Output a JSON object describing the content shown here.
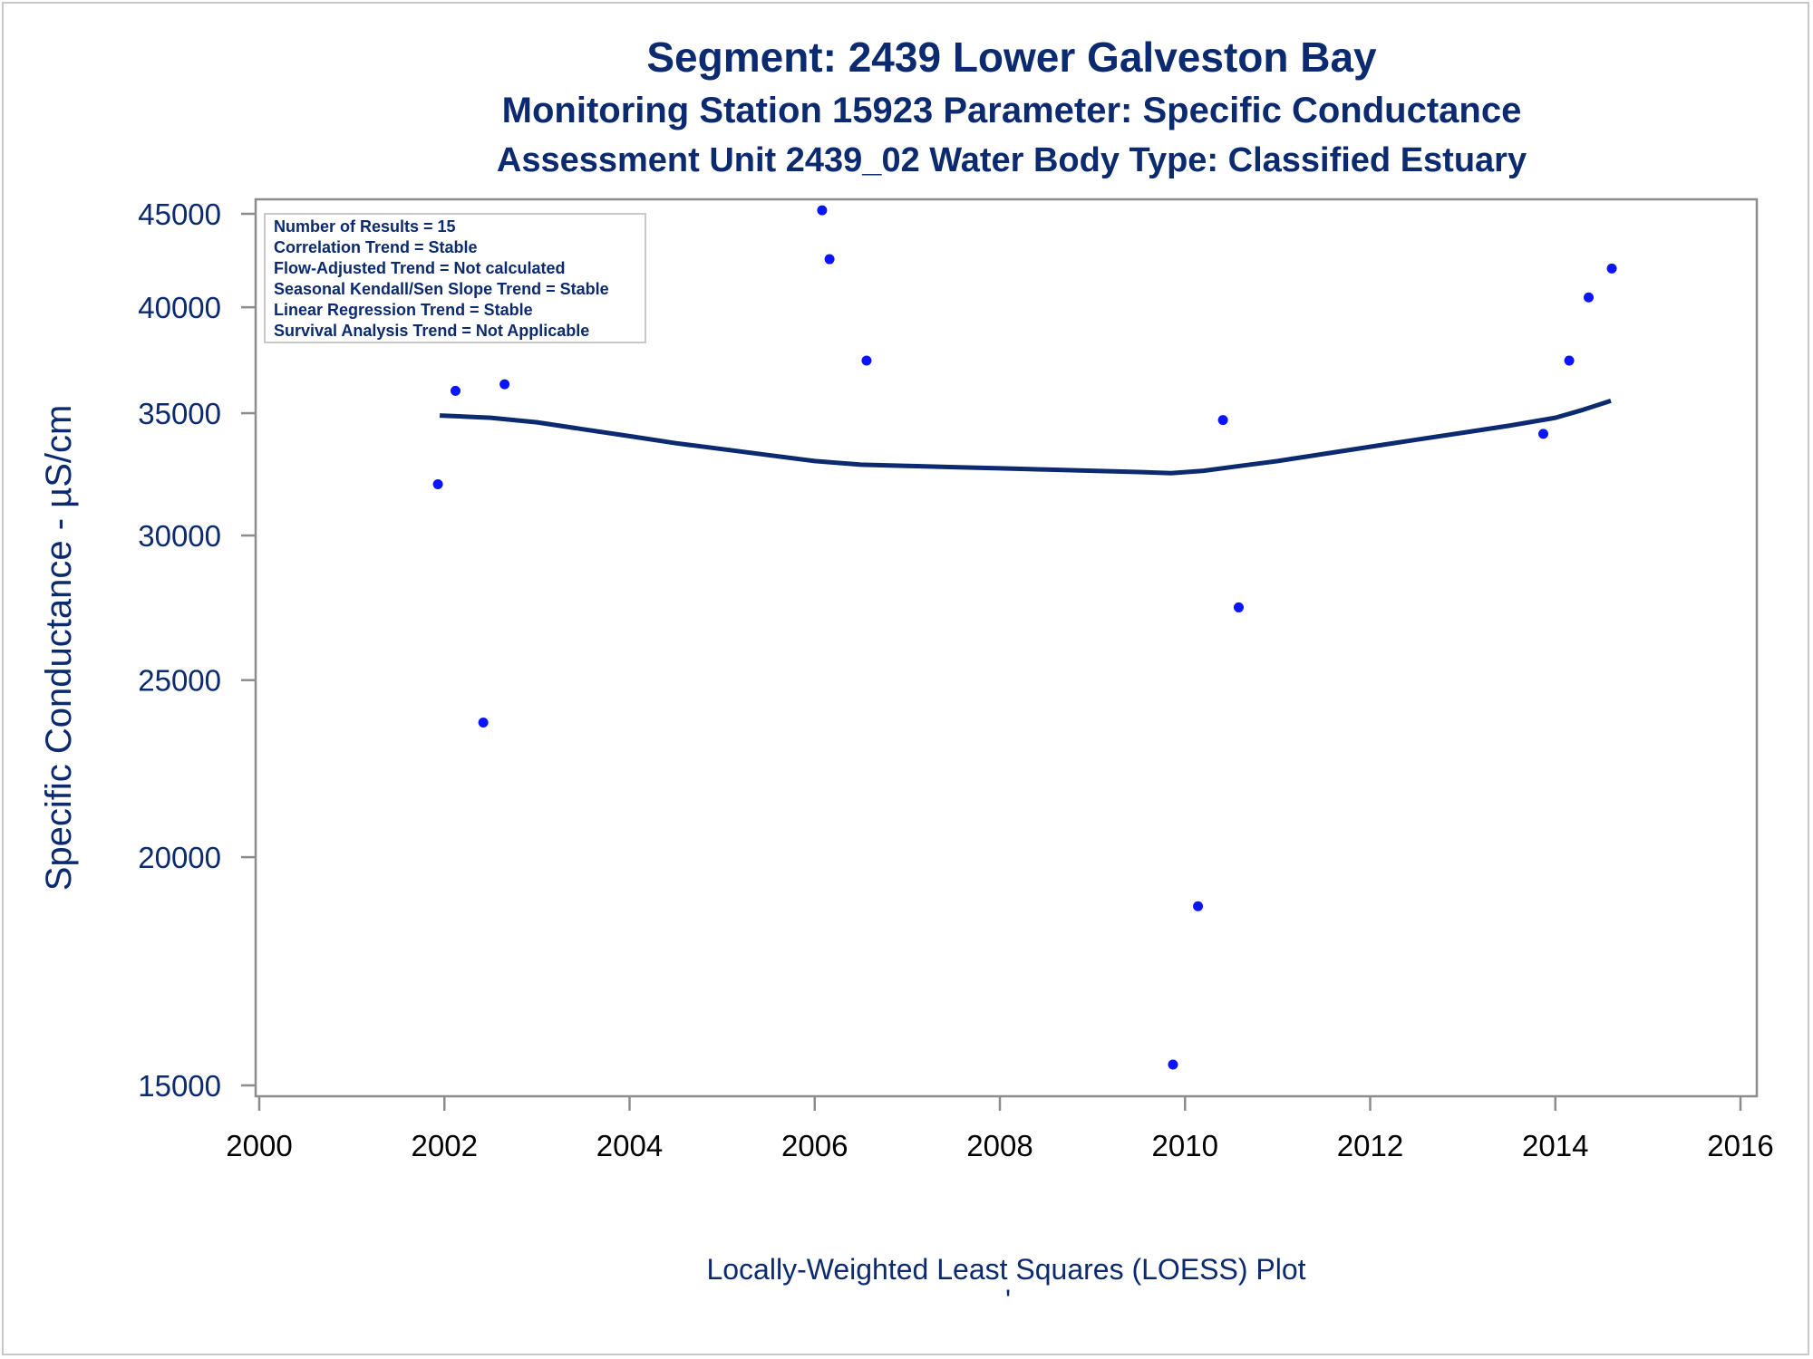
{
  "colors": {
    "title": "#0b2a6f",
    "points": "#0a14ff",
    "loess": "#0b2a6f",
    "axis": "#8c8c8c"
  },
  "chart_data": {
    "type": "scatter",
    "title": "Segment: 2439  Lower Galveston Bay",
    "subtitle": "Monitoring Station 15923 Parameter: Specific Conductance",
    "subtitle2": "Assessment Unit 2439_02   Water Body Type: Classified Estuary",
    "ylabel": "Specific Conductance -  µS/cm",
    "xlabel": "",
    "footnote": "Locally-Weighted Least Squares (LOESS) Plot",
    "footnote_mark": "'",
    "y_scale": "log",
    "ylim": [
      14800,
      45500
    ],
    "xlim": [
      2000,
      2016
    ],
    "y_ticks": [
      15000,
      20000,
      25000,
      30000,
      35000,
      40000,
      45000
    ],
    "x_ticks": [
      2000,
      2002,
      2004,
      2006,
      2008,
      2010,
      2012,
      2014,
      2016
    ],
    "grid": false,
    "stats_box": [
      "Number of Results = 15",
      "Correlation Trend = Stable",
      "Flow-Adjusted Trend = Not calculated",
      "Seasonal Kendall/Sen Slope Trend = Stable",
      "Linear Regression Trend = Stable",
      "Survival Analysis Trend = Not Applicable"
    ],
    "stats_box_placement": "top-left",
    "series": [
      {
        "type": "scatter",
        "points": [
          {
            "x": 2001.93,
            "y": 32000
          },
          {
            "x": 2002.12,
            "y": 36000
          },
          {
            "x": 2002.42,
            "y": 23700
          },
          {
            "x": 2002.65,
            "y": 36300
          },
          {
            "x": 2006.08,
            "y": 45200
          },
          {
            "x": 2006.16,
            "y": 42500
          },
          {
            "x": 2006.56,
            "y": 37400
          },
          {
            "x": 2009.87,
            "y": 15400
          },
          {
            "x": 2010.14,
            "y": 18800
          },
          {
            "x": 2010.41,
            "y": 34700
          },
          {
            "x": 2010.58,
            "y": 27400
          },
          {
            "x": 2013.87,
            "y": 34100
          },
          {
            "x": 2014.15,
            "y": 37400
          },
          {
            "x": 2014.36,
            "y": 40500
          },
          {
            "x": 2014.61,
            "y": 42000
          }
        ]
      },
      {
        "type": "line",
        "points": [
          {
            "x": 2001.95,
            "y": 34900
          },
          {
            "x": 2002.5,
            "y": 34800
          },
          {
            "x": 2003.0,
            "y": 34600
          },
          {
            "x": 2003.5,
            "y": 34300
          },
          {
            "x": 2004.0,
            "y": 34000
          },
          {
            "x": 2004.5,
            "y": 33700
          },
          {
            "x": 2005.0,
            "y": 33450
          },
          {
            "x": 2005.5,
            "y": 33200
          },
          {
            "x": 2006.0,
            "y": 32950
          },
          {
            "x": 2006.5,
            "y": 32800
          },
          {
            "x": 2007.0,
            "y": 32750
          },
          {
            "x": 2007.5,
            "y": 32700
          },
          {
            "x": 2008.0,
            "y": 32650
          },
          {
            "x": 2008.5,
            "y": 32600
          },
          {
            "x": 2009.0,
            "y": 32550
          },
          {
            "x": 2009.5,
            "y": 32500
          },
          {
            "x": 2009.85,
            "y": 32450
          },
          {
            "x": 2010.2,
            "y": 32550
          },
          {
            "x": 2010.6,
            "y": 32750
          },
          {
            "x": 2011.0,
            "y": 32950
          },
          {
            "x": 2011.5,
            "y": 33250
          },
          {
            "x": 2012.0,
            "y": 33550
          },
          {
            "x": 2012.5,
            "y": 33850
          },
          {
            "x": 2013.0,
            "y": 34150
          },
          {
            "x": 2013.5,
            "y": 34450
          },
          {
            "x": 2014.0,
            "y": 34800
          },
          {
            "x": 2014.3,
            "y": 35150
          },
          {
            "x": 2014.6,
            "y": 35550
          }
        ]
      }
    ]
  }
}
